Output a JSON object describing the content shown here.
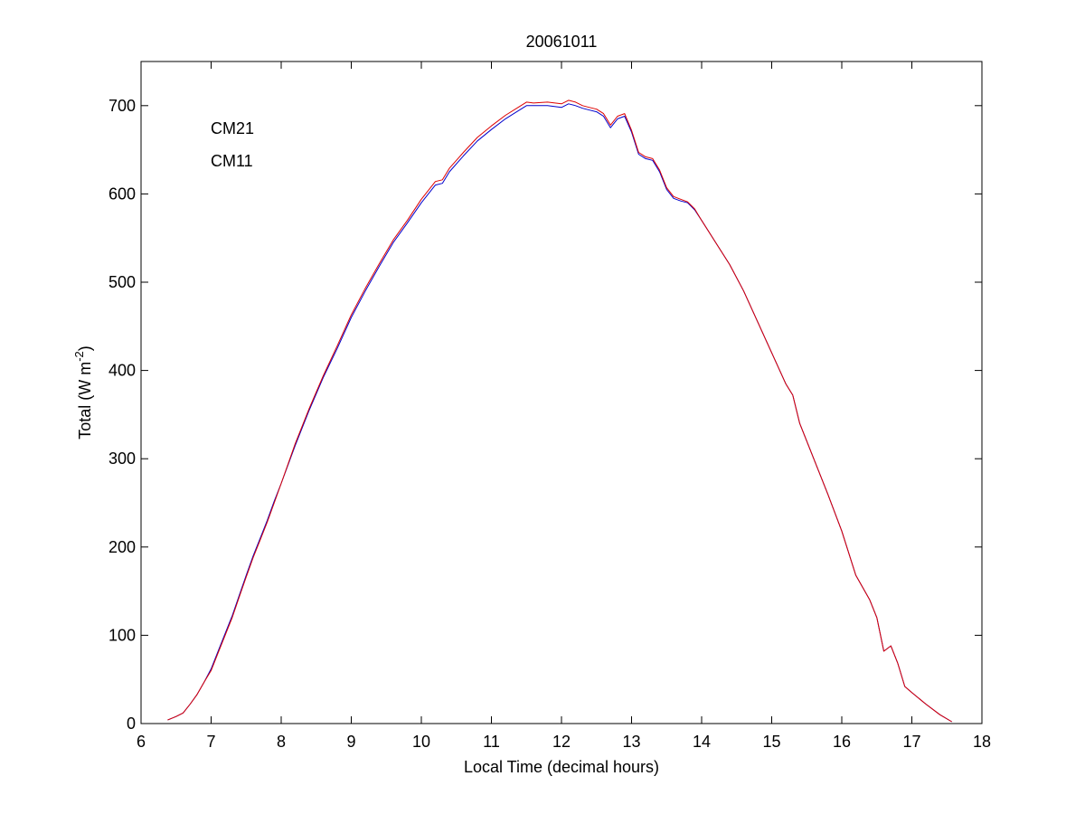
{
  "chart_data": {
    "type": "line",
    "title": "20061011",
    "xlabel": "Local Time (decimal hours)",
    "ylabel_main": "Total (W m",
    "ylabel_exp": "-2",
    "ylabel_close": ")",
    "xlim": [
      6,
      18
    ],
    "ylim": [
      0,
      750
    ],
    "xticks": [
      6,
      7,
      8,
      9,
      10,
      11,
      12,
      13,
      14,
      15,
      16,
      17,
      18
    ],
    "yticks": [
      0,
      100,
      200,
      300,
      400,
      500,
      600,
      700
    ],
    "grid": false,
    "legend_placement": "top-left",
    "series": [
      {
        "name": "CM21",
        "color": "#0000cc",
        "x": [
          6.38,
          6.5,
          6.6,
          6.7,
          6.8,
          6.9,
          7.0,
          7.1,
          7.2,
          7.3,
          7.4,
          7.5,
          7.6,
          7.7,
          7.8,
          7.9,
          8.0,
          8.2,
          8.4,
          8.6,
          8.8,
          9.0,
          9.2,
          9.4,
          9.6,
          9.8,
          10.0,
          10.2,
          10.3,
          10.4,
          10.6,
          10.8,
          11.0,
          11.2,
          11.4,
          11.5,
          11.6,
          11.8,
          12.0,
          12.1,
          12.2,
          12.3,
          12.4,
          12.5,
          12.6,
          12.7,
          12.8,
          12.9,
          13.0,
          13.1,
          13.2,
          13.3,
          13.4,
          13.5,
          13.6,
          13.7,
          13.8,
          13.9,
          14.0,
          14.2,
          14.4,
          14.6,
          14.8,
          15.0,
          15.2,
          15.3,
          15.4,
          15.6,
          15.8,
          16.0,
          16.2,
          16.4,
          16.5,
          16.6,
          16.7,
          16.8,
          16.9,
          17.0,
          17.2,
          17.4,
          17.57
        ],
        "y": [
          4,
          8,
          12,
          22,
          33,
          47,
          62,
          82,
          102,
          122,
          145,
          168,
          190,
          210,
          230,
          252,
          272,
          315,
          355,
          392,
          425,
          460,
          490,
          518,
          545,
          567,
          590,
          610,
          612,
          625,
          643,
          660,
          673,
          685,
          695,
          700,
          700,
          700,
          698,
          702,
          700,
          697,
          695,
          693,
          688,
          675,
          685,
          688,
          670,
          645,
          640,
          638,
          625,
          605,
          595,
          592,
          590,
          582,
          570,
          545,
          520,
          490,
          455,
          420,
          385,
          372,
          340,
          300,
          260,
          218,
          168,
          140,
          120,
          82,
          88,
          68,
          42,
          35,
          22,
          10,
          2
        ]
      },
      {
        "name": "CM11",
        "color": "#dd0000",
        "x": [
          6.38,
          6.5,
          6.6,
          6.7,
          6.8,
          6.9,
          7.0,
          7.1,
          7.2,
          7.3,
          7.4,
          7.5,
          7.6,
          7.7,
          7.8,
          7.9,
          8.0,
          8.2,
          8.4,
          8.6,
          8.8,
          9.0,
          9.2,
          9.4,
          9.6,
          9.8,
          10.0,
          10.2,
          10.3,
          10.4,
          10.6,
          10.8,
          11.0,
          11.2,
          11.4,
          11.5,
          11.6,
          11.8,
          12.0,
          12.1,
          12.2,
          12.3,
          12.4,
          12.5,
          12.6,
          12.7,
          12.8,
          12.9,
          13.0,
          13.1,
          13.2,
          13.3,
          13.4,
          13.5,
          13.6,
          13.7,
          13.8,
          13.9,
          14.0,
          14.2,
          14.4,
          14.6,
          14.8,
          15.0,
          15.2,
          15.3,
          15.4,
          15.6,
          15.8,
          16.0,
          16.2,
          16.4,
          16.5,
          16.6,
          16.7,
          16.8,
          16.9,
          17.0,
          17.2,
          17.4,
          17.57
        ],
        "y": [
          4,
          8,
          12,
          22,
          33,
          47,
          60,
          80,
          100,
          120,
          143,
          166,
          188,
          208,
          228,
          250,
          272,
          317,
          357,
          394,
          428,
          463,
          493,
          521,
          548,
          570,
          594,
          614,
          616,
          629,
          647,
          664,
          677,
          689,
          699,
          704,
          703,
          704,
          702,
          706,
          704,
          700,
          698,
          696,
          691,
          678,
          688,
          691,
          672,
          647,
          642,
          640,
          627,
          607,
          597,
          594,
          591,
          583,
          570,
          545,
          520,
          490,
          455,
          420,
          385,
          372,
          340,
          300,
          260,
          218,
          168,
          140,
          120,
          82,
          88,
          68,
          42,
          35,
          22,
          10,
          2
        ]
      }
    ]
  }
}
